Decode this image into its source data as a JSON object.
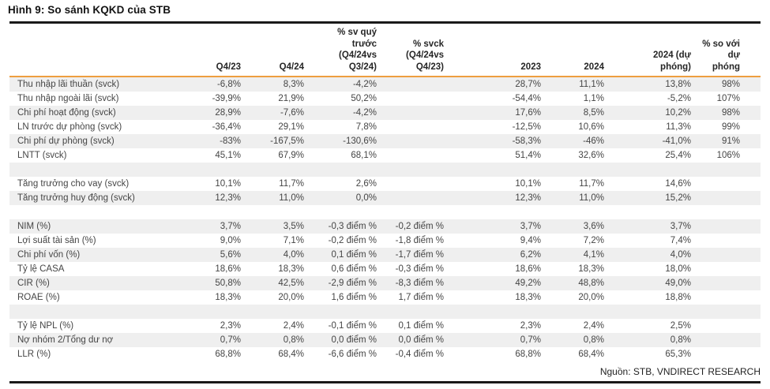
{
  "figure": {
    "title": "Hình 9: So sánh KQKD của STB",
    "source": "Nguồn: STB, VNDIRECT RESEARCH"
  },
  "colors": {
    "accent_orange": "#EE9E3F",
    "stripe_gray": "#EFEFEF",
    "rule_black": "#1a1a1a",
    "body_text": "#454545",
    "header_text": "#262626"
  },
  "table": {
    "columns": [
      "",
      "Q4/23",
      "Q4/24",
      "% sv quý\ntrước\n(Q4/24vs\nQ3/24)",
      "% svck\n(Q4/24vs\nQ4/23)",
      "2023",
      "2024",
      "2024 (dự\nphóng)",
      "% so với dự\nphóng"
    ],
    "rows": [
      {
        "label": "Thu nhập lãi thuần (svck)",
        "values": [
          "-6,8%",
          "8,3%",
          "-4,2%",
          "",
          "28,7%",
          "11,1%",
          "13,8%",
          "98%"
        ]
      },
      {
        "label": "Thu nhập ngoài lãi (svck)",
        "values": [
          "-39,9%",
          "21,9%",
          "50,2%",
          "",
          "-54,4%",
          "1,1%",
          "-5,2%",
          "107%"
        ]
      },
      {
        "label": "Chi phí hoạt động (svck)",
        "values": [
          "28,9%",
          "-7,6%",
          "-4,2%",
          "",
          "17,6%",
          "8,5%",
          "10,2%",
          "98%"
        ]
      },
      {
        "label": "LN trước dự phòng (svck)",
        "values": [
          "-36,4%",
          "29,1%",
          "7,8%",
          "",
          "-12,5%",
          "10,6%",
          "11,3%",
          "99%"
        ]
      },
      {
        "label": "Chi phí dự phòng (svck)",
        "values": [
          "-83%",
          "-167,5%",
          "-130,6%",
          "",
          "-58,3%",
          "-46%",
          "-41,0%",
          "91%"
        ]
      },
      {
        "label": "LNTT (svck)",
        "values": [
          "45,1%",
          "67,9%",
          "68,1%",
          "",
          "51,4%",
          "32,6%",
          "25,4%",
          "106%"
        ]
      },
      {
        "spacer": true,
        "label": "",
        "values": [
          "",
          "",
          "",
          "",
          "",
          "",
          "",
          ""
        ]
      },
      {
        "label": "Tăng trưởng cho vay (svck)",
        "values": [
          "10,1%",
          "11,7%",
          "2,6%",
          "",
          "10,1%",
          "11,7%",
          "14,6%",
          ""
        ]
      },
      {
        "label": "Tăng trưởng huy động (svck)",
        "values": [
          "12,3%",
          "11,0%",
          "0,0%",
          "",
          "12,3%",
          "11,0%",
          "15,2%",
          ""
        ]
      },
      {
        "spacer": true,
        "label": "",
        "values": [
          "",
          "",
          "",
          "",
          "",
          "",
          "",
          ""
        ]
      },
      {
        "label": "NIM (%)",
        "values": [
          "3,7%",
          "3,5%",
          "-0,3 điểm %",
          "-0,2 điểm %",
          "3,7%",
          "3,6%",
          "3,7%",
          ""
        ]
      },
      {
        "label": "Lợi suất tài sản (%)",
        "values": [
          "9,0%",
          "7,1%",
          "-0,2 điểm %",
          "-1,8 điểm %",
          "9,4%",
          "7,2%",
          "7,4%",
          ""
        ]
      },
      {
        "label": "Chi phí vốn (%)",
        "values": [
          "5,6%",
          "4,0%",
          "0,1 điểm %",
          "-1,7 điểm %",
          "6,2%",
          "4,1%",
          "4,0%",
          ""
        ]
      },
      {
        "label": "Tỷ lệ CASA",
        "values": [
          "18,6%",
          "18,3%",
          "0,6 điểm %",
          "-0,3 điểm %",
          "18,6%",
          "18,3%",
          "18,0%",
          ""
        ]
      },
      {
        "label": "CIR (%)",
        "values": [
          "50,8%",
          "42,5%",
          "-2,9 điểm %",
          "-8,3 điểm %",
          "49,2%",
          "48,8%",
          "49,0%",
          ""
        ]
      },
      {
        "label": "ROAE (%)",
        "values": [
          "18,3%",
          "20,0%",
          "1,6 điểm %",
          "1,7 điểm %",
          "18,3%",
          "20,0%",
          "18,8%",
          ""
        ]
      },
      {
        "spacer": true,
        "label": "",
        "values": [
          "",
          "",
          "",
          "",
          "",
          "",
          "",
          ""
        ]
      },
      {
        "label": "Tỷ lệ NPL (%)",
        "values": [
          "2,3%",
          "2,4%",
          "-0,1 điểm %",
          "0,1 điểm %",
          "2,3%",
          "2,4%",
          "2,5%",
          ""
        ]
      },
      {
        "label": "Nợ nhóm 2/Tổng dư nợ",
        "values": [
          "0,7%",
          "0,8%",
          "0,0 điểm %",
          "0,0 điểm %",
          "0,7%",
          "0,8%",
          "0,8%",
          ""
        ]
      },
      {
        "label": "LLR (%)",
        "values": [
          "68,8%",
          "68,4%",
          "-6,6 điểm %",
          "-0,4 điểm %",
          "68,8%",
          "68,4%",
          "65,3%",
          ""
        ]
      }
    ]
  }
}
